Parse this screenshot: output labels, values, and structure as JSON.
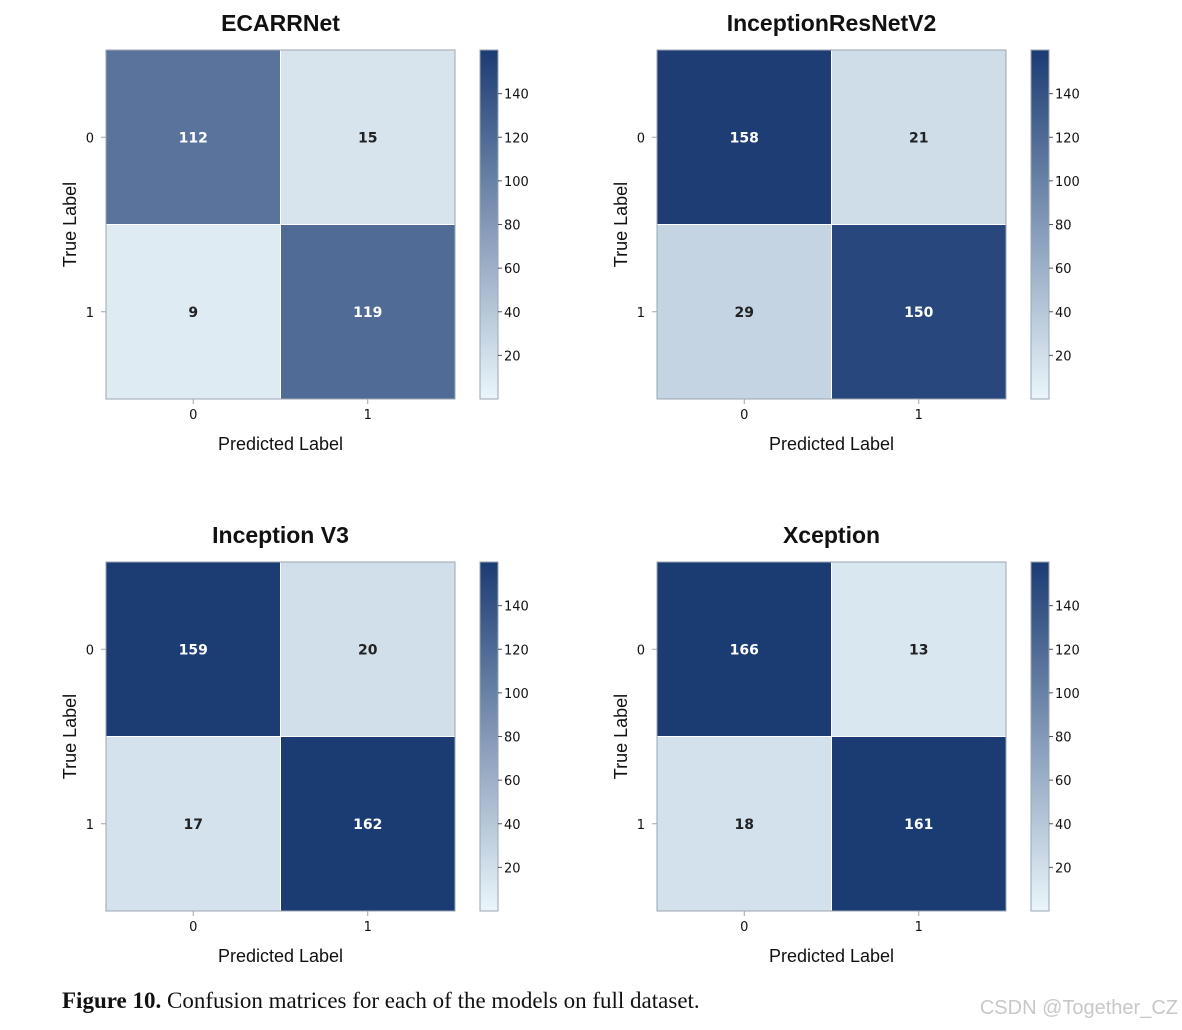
{
  "chart_data": [
    {
      "type": "heatmap",
      "title": "ECARRNet",
      "xlabel": "Predicted Label",
      "ylabel": "True Label",
      "x_categories": [
        "0",
        "1"
      ],
      "y_categories": [
        "0",
        "1"
      ],
      "values": [
        [
          112,
          15
        ],
        [
          9,
          119
        ]
      ],
      "colorbar": {
        "ticks": [
          20,
          40,
          60,
          80,
          100,
          120,
          140
        ],
        "range": [
          0,
          160
        ]
      }
    },
    {
      "type": "heatmap",
      "title": "InceptionResNetV2",
      "xlabel": "Predicted Label",
      "ylabel": "True Label",
      "x_categories": [
        "0",
        "1"
      ],
      "y_categories": [
        "0",
        "1"
      ],
      "values": [
        [
          158,
          21
        ],
        [
          29,
          150
        ]
      ],
      "colorbar": {
        "ticks": [
          20,
          40,
          60,
          80,
          100,
          120,
          140
        ],
        "range": [
          0,
          160
        ]
      }
    },
    {
      "type": "heatmap",
      "title": "Inception V3",
      "xlabel": "Predicted Label",
      "ylabel": "True Label",
      "x_categories": [
        "0",
        "1"
      ],
      "y_categories": [
        "0",
        "1"
      ],
      "values": [
        [
          159,
          20
        ],
        [
          17,
          162
        ]
      ],
      "colorbar": {
        "ticks": [
          20,
          40,
          60,
          80,
          100,
          120,
          140
        ],
        "range": [
          0,
          160
        ]
      }
    },
    {
      "type": "heatmap",
      "title": "Xception",
      "xlabel": "Predicted Label",
      "ylabel": "True Label",
      "x_categories": [
        "0",
        "1"
      ],
      "y_categories": [
        "0",
        "1"
      ],
      "values": [
        [
          166,
          13
        ],
        [
          18,
          161
        ]
      ],
      "colorbar": {
        "ticks": [
          20,
          40,
          60,
          80,
          100,
          120,
          140
        ],
        "range": [
          0,
          160
        ]
      }
    }
  ],
  "caption": {
    "label": "Figure 10.",
    "text": " Confusion matrices for each of the models on full dataset."
  },
  "watermark": "CSDN @Together_CZ",
  "colors": {
    "low": "#eaf6fb",
    "high": "#1b3b73",
    "axis": "#9aa5b1",
    "text": "#111111"
  }
}
